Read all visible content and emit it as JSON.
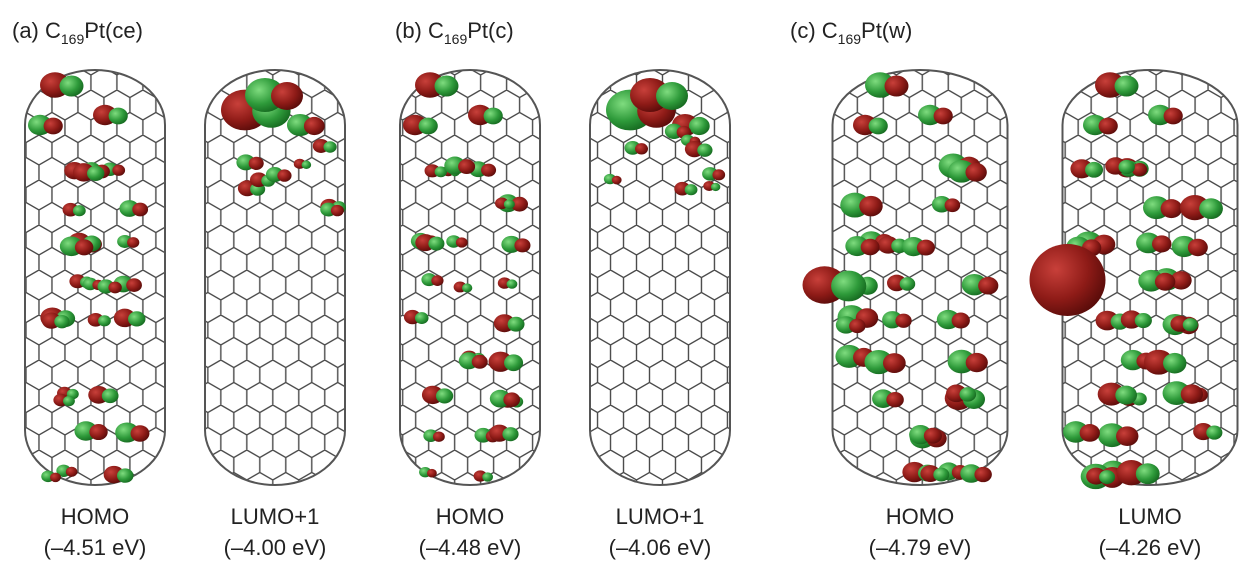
{
  "panels": [
    {
      "prefix": "(a) C",
      "subscript": "169",
      "suffix": "Pt(ce)",
      "orbitals": [
        {
          "name": "HOMO",
          "energy": "(–4.51 eV)"
        },
        {
          "name": "LUMO+1",
          "energy": "(–4.00 eV)"
        }
      ]
    },
    {
      "prefix": "(b) C",
      "subscript": "169",
      "suffix": "Pt(c)",
      "orbitals": [
        {
          "name": "HOMO",
          "energy": "(–4.48 eV)"
        },
        {
          "name": "LUMO+1",
          "energy": "(–4.06 eV)"
        }
      ]
    },
    {
      "prefix": "(c) C",
      "subscript": "169",
      "suffix": "Pt(w)",
      "orbitals": [
        {
          "name": "HOMO",
          "energy": "(–4.79 eV)"
        },
        {
          "name": "LUMO",
          "energy": "(–4.26 eV)"
        }
      ]
    }
  ]
}
